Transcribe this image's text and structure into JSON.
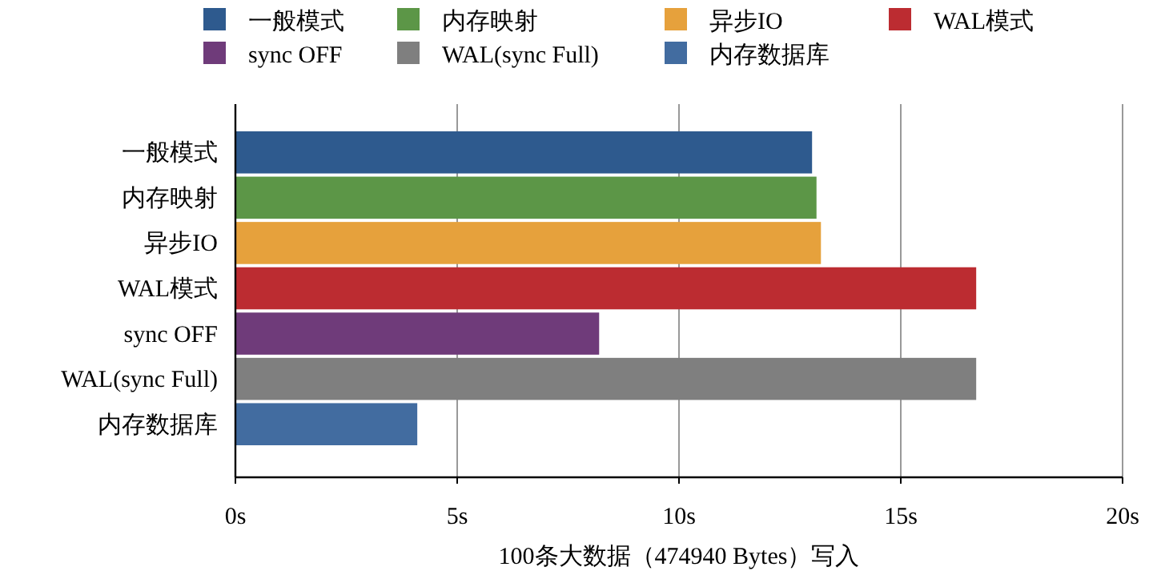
{
  "chart_data": {
    "type": "bar",
    "orientation": "horizontal",
    "categories": [
      "一般模式",
      "内存映射",
      "异步IO",
      "WAL模式",
      "sync OFF",
      "WAL(sync Full)",
      "内存数据库"
    ],
    "series": [
      {
        "name": "一般模式",
        "color": "#2e5a8e",
        "values": [
          13.0,
          null,
          null,
          null,
          null,
          null,
          null
        ]
      },
      {
        "name": "内存映射",
        "color": "#5c9647",
        "values": [
          null,
          13.1,
          null,
          null,
          null,
          null,
          null
        ]
      },
      {
        "name": "异步IO",
        "color": "#e6a13c",
        "values": [
          null,
          null,
          13.2,
          null,
          null,
          null,
          null
        ]
      },
      {
        "name": "WAL模式",
        "color": "#bc2c31",
        "values": [
          null,
          null,
          null,
          16.7,
          null,
          null,
          null
        ]
      },
      {
        "name": "sync OFF",
        "color": "#6f3b7a",
        "values": [
          null,
          null,
          null,
          null,
          8.2,
          null,
          null
        ]
      },
      {
        "name": "WAL(sync Full)",
        "color": "#7f7f7f",
        "values": [
          null,
          null,
          null,
          null,
          null,
          16.7,
          null
        ]
      },
      {
        "name": "内存数据库",
        "color": "#426ca0",
        "values": [
          null,
          null,
          null,
          null,
          null,
          null,
          4.1
        ]
      }
    ],
    "xlim": [
      0,
      20
    ],
    "xticks": [
      {
        "value": 0,
        "label": "0s"
      },
      {
        "value": 5,
        "label": "5s"
      },
      {
        "value": 10,
        "label": "10s"
      },
      {
        "value": 15,
        "label": "15s"
      },
      {
        "value": 20,
        "label": "20s"
      }
    ],
    "xlabel": "100条大数据（474940 Bytes）写入",
    "grid": "x",
    "legend": "top"
  }
}
